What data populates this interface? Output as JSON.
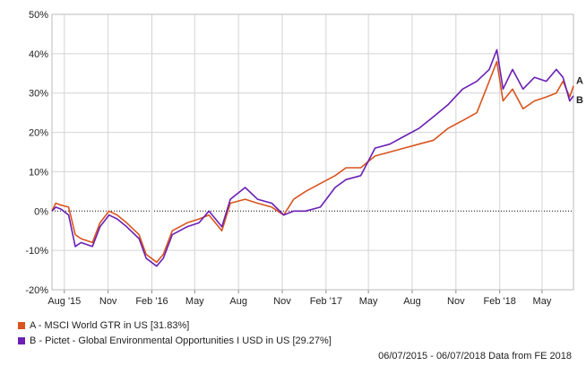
{
  "chart_data": {
    "type": "line",
    "y_unit": "%",
    "ylim": [
      -20,
      50
    ],
    "yticks": [
      -20,
      -10,
      0,
      10,
      20,
      30,
      40,
      50
    ],
    "xlim": [
      "2015-07-06",
      "2018-07-06"
    ],
    "xticks": [
      {
        "date": "2015-08-01",
        "label": "Aug '15"
      },
      {
        "date": "2015-11-01",
        "label": "Nov"
      },
      {
        "date": "2016-02-01",
        "label": "Feb '16"
      },
      {
        "date": "2016-05-01",
        "label": "May"
      },
      {
        "date": "2016-08-01",
        "label": "Aug"
      },
      {
        "date": "2016-11-01",
        "label": "Nov"
      },
      {
        "date": "2017-02-01",
        "label": "Feb '17"
      },
      {
        "date": "2017-05-01",
        "label": "May"
      },
      {
        "date": "2017-08-01",
        "label": "Aug"
      },
      {
        "date": "2017-11-01",
        "label": "Nov"
      },
      {
        "date": "2018-02-01",
        "label": "Feb '18"
      },
      {
        "date": "2018-05-01",
        "label": "May"
      }
    ],
    "grid": true,
    "zero_line": "dotted",
    "series": [
      {
        "name": "A - MSCI World GTR in US [31.83%]",
        "end_label": "A",
        "color": "#d9541e",
        "points": [
          [
            "2015-07-06",
            0
          ],
          [
            "2015-07-14",
            2
          ],
          [
            "2015-07-25",
            1.5
          ],
          [
            "2015-08-10",
            1
          ],
          [
            "2015-08-24",
            -6
          ],
          [
            "2015-09-05",
            -7
          ],
          [
            "2015-09-29",
            -8
          ],
          [
            "2015-10-15",
            -3
          ],
          [
            "2015-11-03",
            0
          ],
          [
            "2015-11-20",
            -1
          ],
          [
            "2015-12-10",
            -3
          ],
          [
            "2016-01-05",
            -6
          ],
          [
            "2016-01-20",
            -11
          ],
          [
            "2016-02-11",
            -13
          ],
          [
            "2016-02-25",
            -11
          ],
          [
            "2016-03-15",
            -5
          ],
          [
            "2016-04-15",
            -3
          ],
          [
            "2016-05-10",
            -2
          ],
          [
            "2016-05-31",
            -1
          ],
          [
            "2016-06-27",
            -5
          ],
          [
            "2016-07-15",
            2
          ],
          [
            "2016-08-15",
            3
          ],
          [
            "2016-09-10",
            2
          ],
          [
            "2016-10-10",
            1
          ],
          [
            "2016-11-04",
            -1
          ],
          [
            "2016-11-25",
            3
          ],
          [
            "2016-12-20",
            5
          ],
          [
            "2017-01-20",
            7
          ],
          [
            "2017-02-20",
            9
          ],
          [
            "2017-03-15",
            11
          ],
          [
            "2017-04-15",
            11
          ],
          [
            "2017-05-15",
            14
          ],
          [
            "2017-06-15",
            15
          ],
          [
            "2017-07-15",
            16
          ],
          [
            "2017-08-15",
            17
          ],
          [
            "2017-09-15",
            18
          ],
          [
            "2017-10-15",
            21
          ],
          [
            "2017-11-15",
            23
          ],
          [
            "2017-12-15",
            25
          ],
          [
            "2018-01-10",
            33
          ],
          [
            "2018-01-26",
            38
          ],
          [
            "2018-02-08",
            28
          ],
          [
            "2018-02-28",
            31
          ],
          [
            "2018-03-22",
            26
          ],
          [
            "2018-04-15",
            28
          ],
          [
            "2018-05-10",
            29
          ],
          [
            "2018-05-31",
            30
          ],
          [
            "2018-06-14",
            33
          ],
          [
            "2018-06-28",
            29
          ],
          [
            "2018-07-06",
            31.83
          ]
        ]
      },
      {
        "name": "B - Pictet - Global Environmental Opportunities I USD in US [29.27%]",
        "end_label": "B",
        "color": "#6a1fb5",
        "points": [
          [
            "2015-07-06",
            0
          ],
          [
            "2015-07-14",
            1
          ],
          [
            "2015-07-25",
            0.5
          ],
          [
            "2015-08-10",
            -1
          ],
          [
            "2015-08-24",
            -9
          ],
          [
            "2015-09-05",
            -8
          ],
          [
            "2015-09-29",
            -9
          ],
          [
            "2015-10-15",
            -4
          ],
          [
            "2015-11-03",
            -1
          ],
          [
            "2015-11-20",
            -2
          ],
          [
            "2015-12-10",
            -4
          ],
          [
            "2016-01-05",
            -7
          ],
          [
            "2016-01-20",
            -12
          ],
          [
            "2016-02-11",
            -14
          ],
          [
            "2016-02-25",
            -12
          ],
          [
            "2016-03-15",
            -6
          ],
          [
            "2016-04-15",
            -4
          ],
          [
            "2016-05-10",
            -3
          ],
          [
            "2016-05-31",
            0
          ],
          [
            "2016-06-27",
            -4
          ],
          [
            "2016-07-15",
            3
          ],
          [
            "2016-08-15",
            6
          ],
          [
            "2016-09-10",
            3
          ],
          [
            "2016-10-10",
            2
          ],
          [
            "2016-11-04",
            -1
          ],
          [
            "2016-11-25",
            0
          ],
          [
            "2016-12-20",
            0
          ],
          [
            "2017-01-20",
            1
          ],
          [
            "2017-02-20",
            6
          ],
          [
            "2017-03-15",
            8
          ],
          [
            "2017-04-15",
            9
          ],
          [
            "2017-05-15",
            16
          ],
          [
            "2017-06-15",
            17
          ],
          [
            "2017-07-15",
            19
          ],
          [
            "2017-08-15",
            21
          ],
          [
            "2017-09-15",
            24
          ],
          [
            "2017-10-15",
            27
          ],
          [
            "2017-11-15",
            31
          ],
          [
            "2017-12-15",
            33
          ],
          [
            "2018-01-10",
            36
          ],
          [
            "2018-01-26",
            41
          ],
          [
            "2018-02-08",
            31
          ],
          [
            "2018-02-28",
            36
          ],
          [
            "2018-03-22",
            31
          ],
          [
            "2018-04-15",
            34
          ],
          [
            "2018-05-10",
            33
          ],
          [
            "2018-05-31",
            36
          ],
          [
            "2018-06-14",
            34
          ],
          [
            "2018-06-28",
            28
          ],
          [
            "2018-07-06",
            29.27
          ]
        ]
      }
    ]
  },
  "footer": {
    "date_range": "06/07/2015 - 06/07/2018",
    "source": "Data from FE 2018"
  }
}
